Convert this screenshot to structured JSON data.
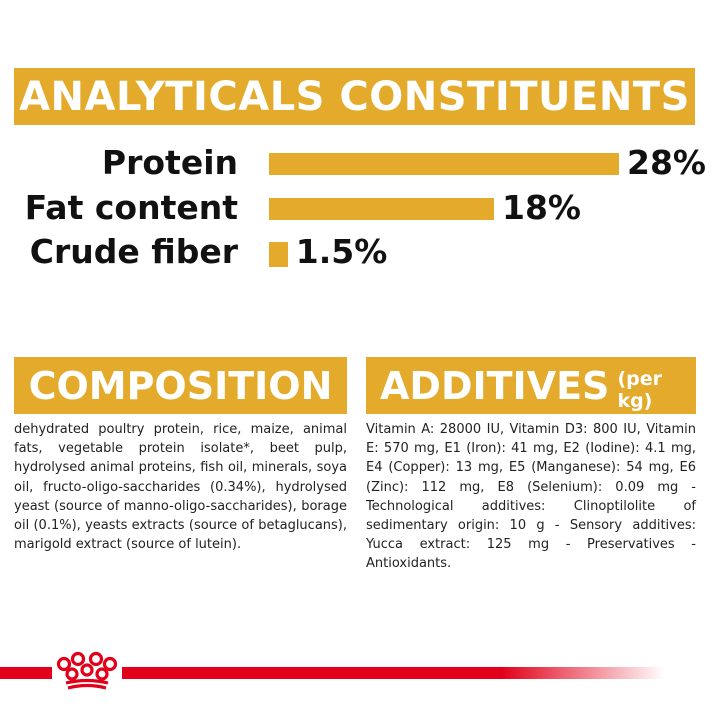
{
  "analytics": {
    "title": "ANALYTICALS CONSTITUENTS",
    "items": [
      {
        "label": "Protein",
        "value_text": "28%",
        "value": 28
      },
      {
        "label": "Fat content",
        "value_text": "18%",
        "value": 18
      },
      {
        "label": "Crude fiber",
        "value_text": "1.5%",
        "value": 1.5
      }
    ]
  },
  "composition": {
    "title": "COMPOSITION",
    "text": "dehydrated poultry protein, rice, maize, animal fats, vegetable protein isolate*, beet pulp, hydrolysed animal proteins, fish oil, minerals, soya oil, fructo-oligo-saccharides (0.34%), hydrolysed yeast (source of manno-oligo-saccharides), borage oil (0.1%), yeasts extracts (source of betaglucans), marigold extract (source of lutein)."
  },
  "additives": {
    "title": "ADDITIVES",
    "unit": "(per kg)",
    "text": "Vitamin A: 28000 IU, Vitamin D3: 800 IU, Vitamin E: 570 mg, E1 (Iron): 41 mg, E2 (Iodine): 4.1 mg, E4 (Copper): 13 mg, E5 (Manganese): 54 mg, E6 (Zinc): 112 mg, E8 (Selenium): 0.09 mg - Technological additives: Clinoptilolite of sedimentary origin: 10 g - Sensory additives: Yucca extract: 125 mg - Preservatives - Antioxidants."
  },
  "colors": {
    "accent": "#e3aa2c",
    "brand_red": "#e2001a"
  },
  "icons": {
    "footer_logo": "crown-icon"
  }
}
